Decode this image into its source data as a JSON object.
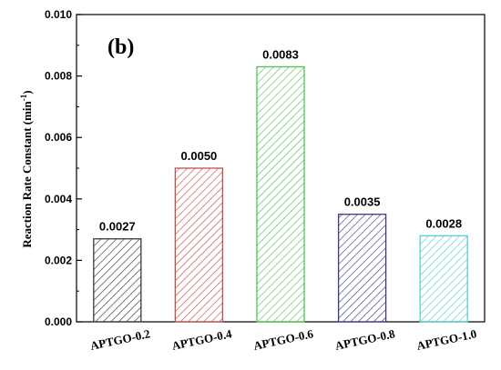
{
  "chart_data": {
    "type": "bar",
    "panel_label": "(b)",
    "ylabel_main": "Reaction Rate Constant (min",
    "ylabel_sup": "-1",
    "ylabel_end": ")",
    "xlabel": "",
    "ylim": [
      0,
      0.01
    ],
    "yticks": [
      "0.000",
      "0.002",
      "0.004",
      "0.006",
      "0.008",
      "0.010"
    ],
    "ytick_values": [
      0,
      0.002,
      0.004,
      0.006,
      0.008,
      0.01
    ],
    "categories": [
      "APTGO-0.2",
      "APTGO-0.4",
      "APTGO-0.6",
      "APTGO-0.8",
      "APTGO-1.0"
    ],
    "values": [
      0.0027,
      0.005,
      0.0083,
      0.0035,
      0.0028
    ],
    "value_labels": [
      "0.0027",
      "0.0050",
      "0.0083",
      "0.0035",
      "0.0028"
    ],
    "bar_colors": [
      "#3a3a3a",
      "#c0504d",
      "#55c155",
      "#3a3a8c",
      "#55d0d0"
    ],
    "hatch": "diagonal",
    "grid": false,
    "legend": "none"
  }
}
